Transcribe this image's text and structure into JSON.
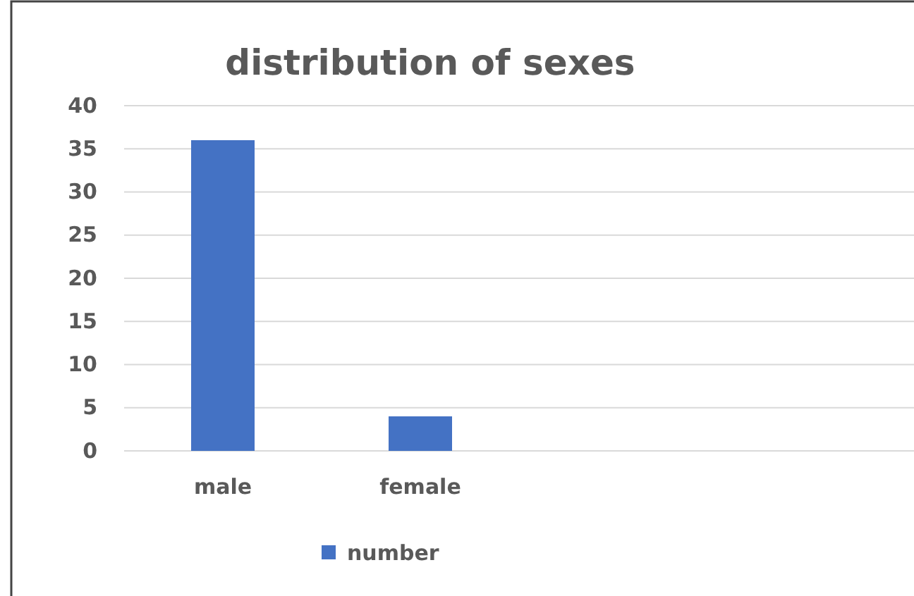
{
  "chart_data": {
    "type": "bar",
    "title": "distribution of sexes",
    "categories": [
      "male",
      "female",
      null,
      null
    ],
    "series": [
      {
        "name": "number",
        "color": "#4472c4",
        "values": [
          36,
          4,
          null,
          null
        ]
      }
    ],
    "ylim": [
      0,
      40
    ],
    "yticks": [
      0,
      5,
      10,
      15,
      20,
      25,
      30,
      35,
      40
    ],
    "grid": "y",
    "legend": "bottom"
  }
}
